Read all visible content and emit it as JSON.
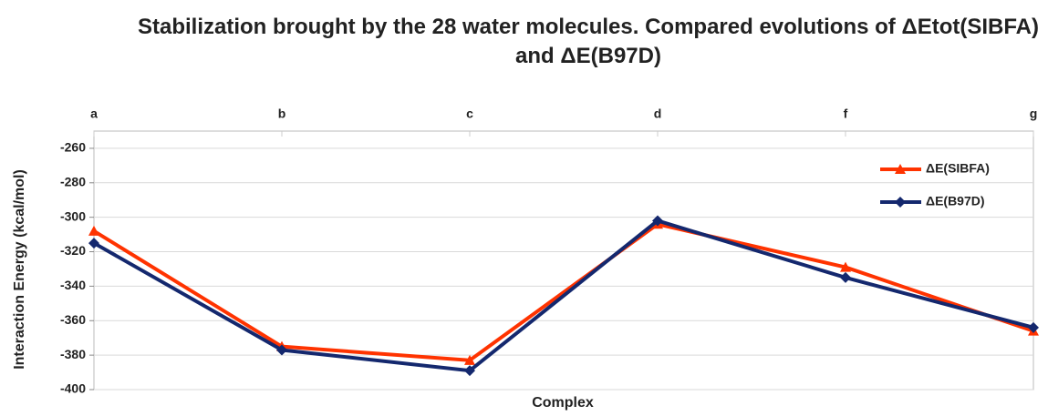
{
  "chart_data": {
    "type": "line",
    "title": "Stabilization brought by the 28 water molecules. Compared evolutions of ΔEtot(SIBFA) and ΔE(B97D)",
    "x_label": "Complex",
    "y_label": "Interaction Energy (kcal/mol)",
    "categories": [
      "a",
      "b",
      "c",
      "d",
      "f",
      "g"
    ],
    "series": [
      {
        "name": "ΔE(SIBFA)",
        "color": "#ff3300",
        "marker": "triangle",
        "values": [
          -308,
          -375,
          -383,
          -304,
          -329,
          -366
        ]
      },
      {
        "name": "ΔE(B97D)",
        "color": "#14286e",
        "marker": "diamond",
        "values": [
          -315,
          -377,
          -389,
          -302,
          -335,
          -364
        ]
      }
    ],
    "ylim": [
      -400,
      -250
    ],
    "yticks": [
      -400,
      -380,
      -360,
      -340,
      -320,
      -300,
      -280,
      -260
    ],
    "grid": true,
    "legend": "upper right"
  }
}
